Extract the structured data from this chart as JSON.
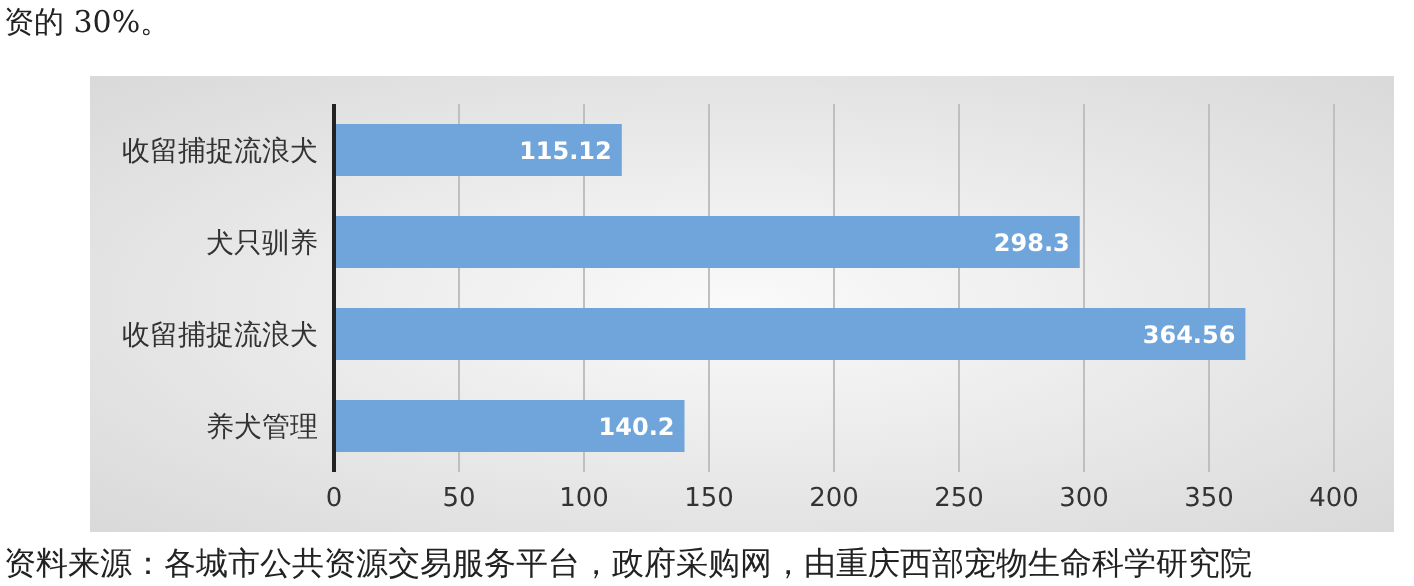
{
  "chart_data": {
    "type": "bar",
    "orientation": "horizontal",
    "categories": [
      "收留捕捉流浪犬",
      "犬只驯养",
      "收留捕捉流浪犬",
      "养犬管理"
    ],
    "values": [
      115.12,
      298.3,
      364.56,
      140.2
    ],
    "color": "#6fa5da",
    "xlim": [
      0,
      400
    ],
    "xticks": [
      0,
      50,
      100,
      150,
      200,
      250,
      300,
      350,
      400
    ],
    "grid": "x",
    "data_labels": true,
    "annotations": [
      "资的 30%。",
      "资料来源：各城市公共资源交易服务平台，政府采购网，由重庆西部宠物生命科学研究院"
    ]
  }
}
